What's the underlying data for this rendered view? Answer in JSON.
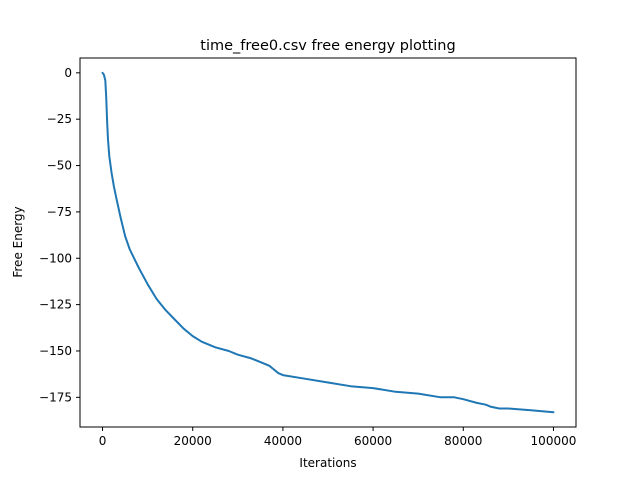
{
  "chart_data": {
    "type": "line",
    "title": "time_free0.csv free energy plotting",
    "xlabel": "Iterations",
    "ylabel": "Free Energy",
    "xlim": [
      -5000,
      105000
    ],
    "ylim": [
      -191,
      8
    ],
    "xticks": [
      0,
      20000,
      40000,
      60000,
      80000,
      100000
    ],
    "xtick_labels": [
      "0",
      "20000",
      "40000",
      "60000",
      "80000",
      "100000"
    ],
    "yticks": [
      0,
      -25,
      -50,
      -75,
      -100,
      -125,
      -150,
      -175
    ],
    "ytick_labels": [
      "0",
      "−25",
      "−50",
      "−75",
      "−100",
      "−125",
      "−150",
      "−175"
    ],
    "grid": false,
    "series": [
      {
        "color": "#1f77b4",
        "x": [
          0,
          300,
          600,
          800,
          1000,
          1200,
          1500,
          2000,
          2500,
          3000,
          4000,
          5000,
          6000,
          7000,
          8000,
          10000,
          12000,
          14000,
          16000,
          18000,
          20000,
          22000,
          24000,
          25000,
          28000,
          30000,
          33000,
          35000,
          37000,
          38000,
          39000,
          40000,
          45000,
          50000,
          55000,
          60000,
          65000,
          70000,
          75000,
          78000,
          80000,
          83000,
          85000,
          86000,
          88000,
          90000,
          95000,
          100000
        ],
        "y": [
          0,
          -1,
          -4,
          -13,
          -26,
          -36,
          -45,
          -54,
          -61,
          -67,
          -78,
          -88,
          -95,
          -100,
          -105,
          -114,
          -122,
          -128,
          -133,
          -138,
          -142,
          -145,
          -147,
          -148,
          -150,
          -152,
          -154,
          -156,
          -158,
          -160,
          -162,
          -163,
          -165,
          -167,
          -169,
          -170,
          -172,
          -173,
          -175,
          -175,
          -176,
          -178,
          -179,
          -180,
          -181,
          -181,
          -182,
          -183
        ]
      }
    ]
  }
}
